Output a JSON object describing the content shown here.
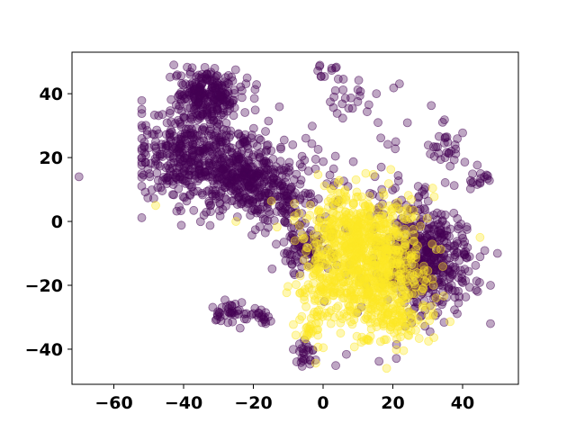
{
  "chart_data": {
    "type": "scatter",
    "title": "",
    "xlabel": "",
    "ylabel": "",
    "xlim": [
      -72,
      56
    ],
    "ylim": [
      -51,
      53
    ],
    "grid": false,
    "x_ticks": [
      -60,
      -40,
      -20,
      0,
      20,
      40
    ],
    "y_ticks": [
      -40,
      -20,
      0,
      20,
      40
    ],
    "x_tick_labels": [
      "−60",
      "−40",
      "−20",
      "0",
      "20",
      "40"
    ],
    "y_tick_labels": [
      "−40",
      "−20",
      "0",
      "20",
      "40"
    ],
    "marker_opacity": 0.35,
    "series": [
      {
        "color": "#440154",
        "clusters": [
          {
            "center": [
              -33,
              40
            ],
            "spread": [
              5,
              4
            ],
            "count": 230
          },
          {
            "center": [
              -38,
              20
            ],
            "spread": [
              8,
              8
            ],
            "count": 420
          },
          {
            "center": [
              -22,
              14
            ],
            "spread": [
              6,
              7
            ],
            "count": 320
          },
          {
            "center": [
              -10,
              10
            ],
            "spread": [
              6,
              6
            ],
            "count": 110
          },
          {
            "center": [
              30,
              -12
            ],
            "spread": [
              6,
              8
            ],
            "count": 460
          },
          {
            "center": [
              -5,
              -8
            ],
            "spread": [
              4,
              4
            ],
            "count": 90
          },
          {
            "center": [
              -28,
              -28
            ],
            "spread": [
              2,
              2
            ],
            "count": 35
          },
          {
            "center": [
              -18,
              -30
            ],
            "spread": [
              2,
              1.5
            ],
            "count": 22
          },
          {
            "center": [
              -5,
              -42
            ],
            "spread": [
              1.8,
              2
            ],
            "count": 25
          },
          {
            "center": [
              8,
              38
            ],
            "spread": [
              3,
              3
            ],
            "count": 20
          },
          {
            "center": [
              35,
              23
            ],
            "spread": [
              3,
              3
            ],
            "count": 25
          },
          {
            "center": [
              45,
              14
            ],
            "spread": [
              2,
              2
            ],
            "count": 15
          },
          {
            "center": [
              18,
              0
            ],
            "spread": [
              12,
              20
            ],
            "count": 90
          },
          {
            "center": [
              2,
              47
            ],
            "spread": [
              2,
              1.5
            ],
            "count": 10
          }
        ],
        "extra_points": [
          [
            -70,
            14
          ],
          [
            48,
            -32
          ],
          [
            48,
            -20
          ],
          [
            50,
            -10
          ],
          [
            -48,
            25
          ]
        ]
      },
      {
        "color": "#fde725",
        "clusters": [
          {
            "center": [
              14,
              -14
            ],
            "spread": [
              8,
              10
            ],
            "count": 700
          },
          {
            "center": [
              8,
              -2
            ],
            "spread": [
              6,
              6
            ],
            "count": 200
          },
          {
            "center": [
              20,
              -30
            ],
            "spread": [
              6,
              4
            ],
            "count": 80
          },
          {
            "center": [
              0,
              -18
            ],
            "spread": [
              4,
              6
            ],
            "count": 90
          },
          {
            "center": [
              -4,
              -33
            ],
            "spread": [
              3,
              3
            ],
            "count": 30
          }
        ],
        "extra_points": [
          [
            -48,
            5
          ],
          [
            45,
            -5
          ],
          [
            -25,
            0
          ]
        ]
      }
    ]
  }
}
